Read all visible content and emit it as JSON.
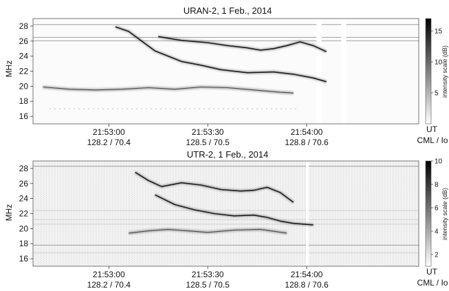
{
  "chart_data": [
    {
      "type": "heatmap",
      "title": "URAN-2,  1 Feb., 2014",
      "ylabel": "MHz",
      "ylim": [
        15,
        29
      ],
      "yticks": [
        "16",
        "18",
        "20",
        "22",
        "24",
        "26",
        "28"
      ],
      "xticks": [
        {
          "time": "21:53:00",
          "cml": "128.2 / 70.4"
        },
        {
          "time": "21:53:30",
          "cml": "128.5 / 70.5"
        },
        {
          "time": "21:54:00",
          "cml": "128.8 / 70.6"
        }
      ],
      "xunit": {
        "time": "UT",
        "cml": "CML / Io"
      },
      "colorbar": {
        "label": "intensity scale (dB)",
        "ticks": [
          "5",
          "10",
          "15"
        ],
        "range": [
          0,
          17
        ]
      },
      "x_range_s": [
        -23,
        94
      ],
      "gaps_s": [
        [
          63,
          64.5
        ],
        [
          70.5,
          72
        ]
      ],
      "interference_mhz": [
        28.2,
        26.5,
        26.05
      ],
      "features": [
        {
          "name": "main arc",
          "points": [
            [
              2,
              27.9
            ],
            [
              6,
              27.3
            ],
            [
              10,
              26.0
            ],
            [
              14,
              24.7
            ],
            [
              18,
              24.0
            ],
            [
              22,
              23.3
            ],
            [
              28,
              22.8
            ],
            [
              34,
              22.2
            ],
            [
              42,
              21.8
            ],
            [
              50,
              21.9
            ],
            [
              56,
              21.6
            ],
            [
              62,
              21.1
            ],
            [
              66,
              20.6
            ]
          ]
        },
        {
          "name": "upper arc",
          "points": [
            [
              15,
              26.6
            ],
            [
              22,
              26.1
            ],
            [
              30,
              25.8
            ],
            [
              36,
              25.4
            ],
            [
              42,
              25.1
            ],
            [
              46,
              24.8
            ],
            [
              50,
              25.0
            ],
            [
              54,
              25.4
            ],
            [
              58,
              25.9
            ],
            [
              62,
              25.4
            ],
            [
              66,
              24.6
            ]
          ]
        },
        {
          "name": "lower band",
          "points": [
            [
              -20,
              19.9
            ],
            [
              -12,
              19.6
            ],
            [
              -4,
              19.5
            ],
            [
              4,
              19.6
            ],
            [
              12,
              19.8
            ],
            [
              20,
              19.6
            ],
            [
              28,
              19.9
            ],
            [
              36,
              19.8
            ],
            [
              44,
              19.5
            ],
            [
              52,
              19.2
            ],
            [
              56,
              19.1
            ]
          ]
        }
      ]
    },
    {
      "type": "heatmap",
      "title": "UTR-2,  1 Feb., 2014",
      "ylabel": "MHz",
      "ylim": [
        15,
        29
      ],
      "yticks": [
        "16",
        "18",
        "20",
        "22",
        "24",
        "26",
        "28"
      ],
      "xticks": [
        {
          "time": "21:53:00",
          "cml": "128.2 / 70.4"
        },
        {
          "time": "21:53:30",
          "cml": "128.5 / 70.5"
        },
        {
          "time": "21:54:00",
          "cml": "128.8 / 70.6"
        }
      ],
      "xunit": {
        "time": "UT",
        "cml": "CML / Io"
      },
      "colorbar": {
        "label": "intensity scale (dB)",
        "ticks": [
          "2",
          "4",
          "6",
          "8",
          "10"
        ],
        "range": [
          1,
          10
        ]
      },
      "x_range_s": [
        -23,
        94
      ],
      "gaps_s": [
        [
          59.8,
          60.6
        ]
      ],
      "interference_mhz": [
        28.3,
        17.8
      ],
      "features": [
        {
          "name": "upper arc",
          "points": [
            [
              8,
              27.5
            ],
            [
              12,
              26.4
            ],
            [
              16,
              25.6
            ],
            [
              22,
              26.1
            ],
            [
              28,
              25.8
            ],
            [
              34,
              25.2
            ],
            [
              40,
              25.0
            ],
            [
              44,
              25.1
            ],
            [
              48,
              25.5
            ],
            [
              52,
              24.8
            ],
            [
              56,
              23.5
            ]
          ]
        },
        {
          "name": "main arc",
          "points": [
            [
              14,
              24.5
            ],
            [
              20,
              23.2
            ],
            [
              26,
              22.5
            ],
            [
              32,
              22.0
            ],
            [
              38,
              21.7
            ],
            [
              44,
              21.8
            ],
            [
              48,
              21.5
            ],
            [
              52,
              21.0
            ],
            [
              56,
              20.7
            ],
            [
              62,
              20.5
            ]
          ]
        },
        {
          "name": "lower band",
          "points": [
            [
              6,
              19.4
            ],
            [
              12,
              19.7
            ],
            [
              18,
              19.9
            ],
            [
              24,
              19.7
            ],
            [
              30,
              19.5
            ],
            [
              38,
              19.8
            ],
            [
              46,
              19.9
            ],
            [
              54,
              19.4
            ]
          ]
        }
      ]
    }
  ]
}
